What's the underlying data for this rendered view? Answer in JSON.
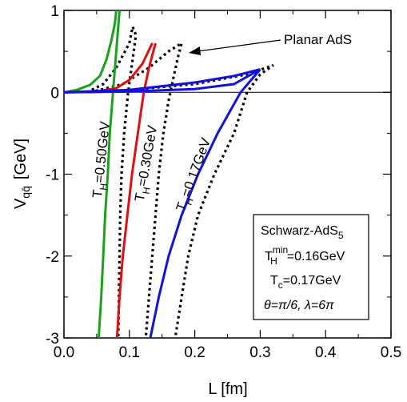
{
  "chart_data": {
    "type": "line",
    "xlabel": "L  [fm]",
    "ylabel_main": "V",
    "ylabel_sub": "qq̄",
    "ylabel_unit": "[GeV]",
    "xlim": [
      0,
      0.5
    ],
    "ylim": [
      -3,
      1
    ],
    "x_ticks": [
      0.0,
      0.1,
      0.2,
      0.3,
      0.4,
      0.5
    ],
    "x_tick_labels": [
      "0.0",
      "0.1",
      "0.2",
      "0.3",
      "0.4",
      "0.5"
    ],
    "y_ticks": [
      -3,
      -2,
      -1,
      0,
      1
    ],
    "y_tick_labels": [
      "-3",
      "-2",
      "-1",
      "0",
      "1"
    ],
    "grid": false,
    "reference_line_y": 0,
    "series": [
      {
        "name": "T_H=0.50GeV",
        "label_main": "T",
        "label_sub": "H",
        "label_rest": "=0.50GeV",
        "color": "#1aa01a",
        "style": "solid",
        "lower_branch": [
          [
            0.0,
            0.0
          ],
          [
            0.02,
            0.03
          ],
          [
            0.04,
            0.09
          ],
          [
            0.055,
            0.2
          ],
          [
            0.065,
            0.4
          ],
          [
            0.073,
            0.65
          ],
          [
            0.078,
            0.85
          ],
          [
            0.08,
            1.0
          ]
        ],
        "upper_branch": [
          [
            0.0,
            0.0
          ],
          [
            0.03,
            0.003
          ],
          [
            0.05,
            0.006
          ],
          [
            0.07,
            0.01
          ]
        ],
        "main_branch": [
          [
            0.085,
            1.0
          ],
          [
            0.08,
            0.5
          ],
          [
            0.075,
            0.0
          ],
          [
            0.07,
            -0.5
          ],
          [
            0.067,
            -1.0
          ],
          [
            0.063,
            -1.5
          ],
          [
            0.06,
            -2.0
          ],
          [
            0.057,
            -2.5
          ],
          [
            0.053,
            -3.0
          ]
        ]
      },
      {
        "name": "T_H=0.30GeV",
        "label_main": "T",
        "label_sub": "H",
        "label_rest": "=0.30GeV",
        "color": "#e01010",
        "style": "solid",
        "lower_branch": [
          [
            0.0,
            0.0
          ],
          [
            0.05,
            0.01
          ],
          [
            0.08,
            0.05
          ],
          [
            0.1,
            0.15
          ],
          [
            0.12,
            0.35
          ],
          [
            0.135,
            0.6
          ]
        ],
        "upper_branch": [
          [
            0.0,
            0.0
          ],
          [
            0.05,
            0.003
          ],
          [
            0.1,
            0.01
          ],
          [
            0.13,
            0.02
          ]
        ],
        "main_branch": [
          [
            0.14,
            0.6
          ],
          [
            0.13,
            0.3
          ],
          [
            0.122,
            0.0
          ],
          [
            0.113,
            -0.5
          ],
          [
            0.104,
            -1.0
          ],
          [
            0.097,
            -1.5
          ],
          [
            0.09,
            -2.0
          ],
          [
            0.085,
            -2.5
          ],
          [
            0.081,
            -3.0
          ]
        ]
      },
      {
        "name": "T_H=0.17GeV",
        "label_main": "T",
        "label_sub": "H",
        "label_rest": "=0.17GeV",
        "color": "#1010e0",
        "style": "solid",
        "lower_branch": [
          [
            0.0,
            0.0
          ],
          [
            0.1,
            0.03
          ],
          [
            0.2,
            0.12
          ],
          [
            0.26,
            0.2
          ],
          [
            0.3,
            0.28
          ]
        ],
        "upper_branch": [
          [
            0.0,
            0.0
          ],
          [
            0.1,
            0.01
          ],
          [
            0.2,
            0.04
          ],
          [
            0.26,
            0.1
          ],
          [
            0.3,
            0.28
          ]
        ],
        "main_branch": [
          [
            0.3,
            0.28
          ],
          [
            0.27,
            0.0
          ],
          [
            0.235,
            -0.5
          ],
          [
            0.205,
            -1.0
          ],
          [
            0.18,
            -1.5
          ],
          [
            0.16,
            -2.0
          ],
          [
            0.145,
            -2.5
          ],
          [
            0.132,
            -3.0
          ]
        ]
      }
    ],
    "dashed_series": [
      {
        "color": "#000000",
        "style": "dotted",
        "points": [
          [
            0.035,
            0.0
          ],
          [
            0.06,
            0.1
          ],
          [
            0.08,
            0.3
          ],
          [
            0.1,
            0.6
          ],
          [
            0.105,
            0.8
          ],
          [
            0.11,
            0.7
          ],
          [
            0.105,
            0.4
          ],
          [
            0.098,
            0.0
          ],
          [
            0.092,
            -0.5
          ],
          [
            0.088,
            -1.0
          ],
          [
            0.086,
            -1.5
          ],
          [
            0.085,
            -2.0
          ],
          [
            0.084,
            -2.5
          ],
          [
            0.083,
            -3.0
          ]
        ]
      },
      {
        "color": "#000000",
        "style": "dotted",
        "points": [
          [
            0.04,
            0.0
          ],
          [
            0.09,
            0.1
          ],
          [
            0.13,
            0.3
          ],
          [
            0.16,
            0.5
          ],
          [
            0.18,
            0.6
          ],
          [
            0.175,
            0.45
          ],
          [
            0.168,
            0.2
          ],
          [
            0.16,
            -0.1
          ],
          [
            0.152,
            -0.5
          ],
          [
            0.145,
            -1.0
          ],
          [
            0.14,
            -1.5
          ],
          [
            0.135,
            -2.0
          ],
          [
            0.13,
            -2.5
          ],
          [
            0.125,
            -3.0
          ]
        ]
      },
      {
        "color": "#000000",
        "style": "dotted",
        "points": [
          [
            0.1,
            0.03
          ],
          [
            0.2,
            0.1
          ],
          [
            0.28,
            0.22
          ],
          [
            0.32,
            0.33
          ],
          [
            0.3,
            0.22
          ],
          [
            0.28,
            0.0
          ],
          [
            0.26,
            -0.5
          ],
          [
            0.23,
            -1.0
          ],
          [
            0.205,
            -1.5
          ],
          [
            0.19,
            -2.0
          ],
          [
            0.18,
            -2.5
          ],
          [
            0.17,
            -3.0
          ]
        ]
      }
    ],
    "annotation": "Planar AdS",
    "legend_box": {
      "line1_main": "Schwarz-AdS",
      "line1_sub": "5",
      "line2_main": "T",
      "line2_sup": "min",
      "line2_sub": "H",
      "line2_rest": "=0.16GeV",
      "line3_main": "T",
      "line3_sub": "c",
      "line3_rest": "=0.17GeV",
      "line4": "θ=π/6,  λ=6π"
    }
  }
}
